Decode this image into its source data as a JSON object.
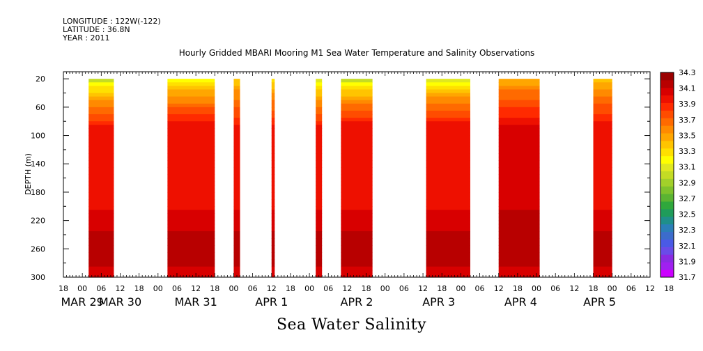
{
  "header": {
    "longitude": "LONGITUDE : 122W(-122)",
    "latitude": "LATITUDE : 36.8N",
    "year": "YEAR : 2011"
  },
  "chart_data": {
    "type": "heatmap",
    "title": "Hourly Gridded MBARI Mooring M1 Sea Water Temperature and Salinity Observations",
    "xlabel": "",
    "ylabel": "DEPTH (m)",
    "caption": "Sea Water Salinity",
    "x_unit": "hours since 2011-03-28 18:00",
    "xlim": [
      0,
      186
    ],
    "ylim": [
      300,
      10
    ],
    "y_ticks": [
      20,
      60,
      100,
      140,
      180,
      220,
      260,
      300
    ],
    "x_tick_labels": [
      "18",
      "00",
      "06",
      "12",
      "18",
      "00",
      "06",
      "12",
      "18",
      "00",
      "06",
      "12",
      "18",
      "00",
      "06",
      "12",
      "18",
      "00",
      "06",
      "12",
      "18",
      "00",
      "06",
      "12",
      "18",
      "00",
      "06",
      "12",
      "18",
      "00",
      "06",
      "12",
      "18"
    ],
    "x_date_labels": [
      {
        "label": "MAR 29",
        "hour": 6
      },
      {
        "label": "MAR 30",
        "hour": 18
      },
      {
        "label": "MAR 31",
        "hour": 42
      },
      {
        "label": "APR  1",
        "hour": 66
      },
      {
        "label": "APR  2",
        "hour": 93
      },
      {
        "label": "APR  3",
        "hour": 119
      },
      {
        "label": "APR  4",
        "hour": 145
      },
      {
        "label": "APR  5",
        "hour": 170
      }
    ],
    "colorbar": {
      "levels": [
        31.7,
        31.8,
        31.9,
        32.0,
        32.1,
        32.2,
        32.3,
        32.4,
        32.5,
        32.6,
        32.7,
        32.8,
        32.9,
        33.0,
        33.1,
        33.2,
        33.3,
        33.4,
        33.5,
        33.6,
        33.7,
        33.8,
        33.9,
        34.0,
        34.1,
        34.2,
        34.3
      ],
      "labels": [
        "34.3",
        "34.1",
        "33.9",
        "33.7",
        "33.5",
        "33.3",
        "33.1",
        "32.9",
        "32.7",
        "32.5",
        "32.3",
        "32.1",
        "31.9",
        "31.7"
      ],
      "colors": [
        "#cc00ff",
        "#a020f0",
        "#8a2be2",
        "#6a4be8",
        "#4a5ae6",
        "#3c6ccc",
        "#2b7fb8",
        "#1f8f8a",
        "#1f9c5a",
        "#2fa83c",
        "#5bb432",
        "#7fc22c",
        "#a2d02a",
        "#c4dc24",
        "#e0e820",
        "#ffff00",
        "#ffe000",
        "#ffc400",
        "#ffa600",
        "#ff8a00",
        "#ff6a00",
        "#ff4c00",
        "#ff2a00",
        "#ee1000",
        "#d80000",
        "#b80000",
        "#9a0000"
      ]
    },
    "observation_blocks": [
      {
        "start_hour": 8,
        "end_hour": 16,
        "surface_salinity": 33.05,
        "mid_salinity": 34.0,
        "deep_salinity": 34.25
      },
      {
        "start_hour": 33,
        "end_hour": 48,
        "surface_salinity": 33.2,
        "mid_salinity": 34.05,
        "deep_salinity": 34.25
      },
      {
        "start_hour": 54,
        "end_hour": 56,
        "surface_salinity": 33.4,
        "mid_salinity": 34.0,
        "deep_salinity": 34.2
      },
      {
        "start_hour": 66,
        "end_hour": 67,
        "surface_salinity": 33.3,
        "mid_salinity": 34.0,
        "deep_salinity": 34.2
      },
      {
        "start_hour": 80,
        "end_hour": 82,
        "surface_salinity": 33.1,
        "mid_salinity": 34.0,
        "deep_salinity": 34.2
      },
      {
        "start_hour": 88,
        "end_hour": 98,
        "surface_salinity": 33.05,
        "mid_salinity": 34.05,
        "deep_salinity": 34.25
      },
      {
        "start_hour": 115,
        "end_hour": 129,
        "surface_salinity": 33.15,
        "mid_salinity": 34.05,
        "deep_salinity": 34.25
      },
      {
        "start_hour": 138,
        "end_hour": 151,
        "surface_salinity": 33.5,
        "mid_salinity": 34.1,
        "deep_salinity": 34.25
      },
      {
        "start_hour": 168,
        "end_hour": 174,
        "surface_salinity": 33.4,
        "mid_salinity": 34.05,
        "deep_salinity": 34.25
      }
    ]
  }
}
